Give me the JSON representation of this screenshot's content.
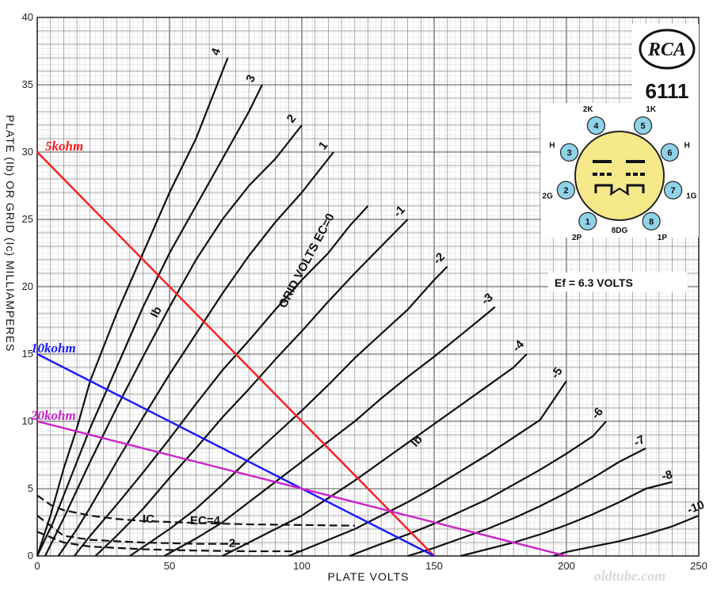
{
  "chart_data": {
    "type": "line",
    "xlabel": "PLATE VOLTS",
    "ylabel": "PLATE (Ib) OR GRID (Ic) MILLIAMPERES",
    "xlim": [
      0,
      250
    ],
    "ylim": [
      0,
      40
    ],
    "x_ticks": [
      "0",
      "50",
      "100",
      "150",
      "200",
      "250"
    ],
    "y_ticks": [
      "0",
      "5",
      "10",
      "15",
      "20",
      "25",
      "30",
      "35",
      "40"
    ],
    "grid": true,
    "heater_note": "Ef = 6.3 VOLTS",
    "tube_type": "6111",
    "brand": "RCA",
    "grid_volts_label": "GRID VOLTS EC=0",
    "ib_label": "Ib",
    "ic_label": "IC",
    "ec_label": "EC=4",
    "watermark": "oldtube.com",
    "plate_curves": [
      {
        "label": "4",
        "x": [
          0,
          5,
          10,
          15,
          20,
          30,
          40,
          50,
          60,
          65,
          72
        ],
        "y": [
          0,
          3,
          6.5,
          9.5,
          13,
          18,
          22.5,
          27,
          31,
          33.5,
          37
        ]
      },
      {
        "label": "3",
        "x": [
          0,
          6,
          10,
          20,
          30,
          40,
          50,
          60,
          70,
          80,
          85
        ],
        "y": [
          0,
          2.5,
          4.5,
          9.5,
          14,
          18.5,
          22.5,
          26,
          29.5,
          33,
          35
        ]
      },
      {
        "label": "2",
        "x": [
          3,
          10,
          20,
          30,
          40,
          50,
          60,
          70,
          80,
          90,
          100
        ],
        "y": [
          0,
          2.8,
          7,
          11,
          14.8,
          18.5,
          22,
          25,
          27.5,
          29.5,
          32
        ]
      },
      {
        "label": "1",
        "x": [
          8,
          15,
          20,
          30,
          40,
          50,
          60,
          70,
          80,
          90,
          100,
          112
        ],
        "y": [
          0,
          2,
          3.6,
          7,
          10.3,
          13.5,
          16.5,
          19.5,
          22.3,
          24.8,
          27,
          30
        ]
      },
      {
        "label": "0",
        "x": [
          14,
          20,
          30,
          40,
          50,
          60,
          70,
          80,
          90,
          100,
          110,
          118,
          125
        ],
        "y": [
          0,
          1.5,
          3.8,
          6.2,
          8.7,
          11.3,
          13.8,
          16,
          18.3,
          20.5,
          22.5,
          24.5,
          26
        ]
      },
      {
        "label": "-1",
        "x": [
          22,
          30,
          40,
          50,
          60,
          70,
          80,
          90,
          100,
          110,
          120,
          130,
          140
        ],
        "y": [
          0,
          1.5,
          3.5,
          5.8,
          8,
          10.3,
          12.4,
          14.6,
          16.7,
          18.9,
          21,
          23,
          25
        ]
      },
      {
        "label": "-2",
        "x": [
          35,
          50,
          60,
          70,
          80,
          90,
          100,
          110,
          120,
          130,
          140,
          150,
          155
        ],
        "y": [
          0,
          2,
          3.5,
          5.3,
          7.2,
          9,
          10.8,
          12.7,
          14.7,
          16.5,
          18.3,
          20.5,
          21.5
        ]
      },
      {
        "label": "-3",
        "x": [
          48,
          60,
          70,
          80,
          90,
          100,
          110,
          120,
          130,
          140,
          150,
          160,
          170,
          173
        ],
        "y": [
          0,
          1.3,
          2.5,
          4,
          5.5,
          7,
          8.5,
          10,
          11.7,
          13.3,
          14.8,
          16.4,
          18,
          18.5
        ]
      },
      {
        "label": "-4",
        "x": [
          70,
          80,
          90,
          100,
          110,
          120,
          130,
          140,
          150,
          160,
          170,
          180,
          185
        ],
        "y": [
          0,
          1,
          2,
          3,
          4.3,
          5.6,
          7,
          8.4,
          9.8,
          11.2,
          12.6,
          14,
          15
        ]
      },
      {
        "label": "-5",
        "x": [
          95,
          100,
          110,
          120,
          130,
          140,
          150,
          160,
          170,
          180,
          190,
          200
        ],
        "y": [
          0,
          0.4,
          1.2,
          2,
          3,
          4,
          5.1,
          6.3,
          7.5,
          8.8,
          10.1,
          13
        ]
      },
      {
        "label": "-6",
        "x": [
          118,
          130,
          140,
          150,
          160,
          170,
          180,
          190,
          200,
          210,
          215
        ],
        "y": [
          0,
          0.9,
          1.6,
          2.4,
          3.3,
          4.2,
          5.3,
          6.4,
          7.6,
          8.9,
          10
        ]
      },
      {
        "label": "-7",
        "x": [
          140,
          150,
          160,
          170,
          180,
          190,
          200,
          210,
          220,
          230
        ],
        "y": [
          0,
          0.6,
          1.3,
          2,
          2.8,
          3.7,
          4.7,
          5.8,
          7,
          8
        ]
      },
      {
        "label": "-8",
        "x": [
          160,
          170,
          180,
          190,
          200,
          210,
          220,
          230,
          240
        ],
        "y": [
          0,
          0.5,
          1,
          1.6,
          2.3,
          3.1,
          4,
          5,
          5.5
        ]
      },
      {
        "label": "-10",
        "x": [
          195,
          200,
          210,
          220,
          230,
          240,
          250
        ],
        "y": [
          0,
          0.3,
          0.7,
          1.1,
          1.6,
          2.2,
          3
        ]
      }
    ],
    "grid_current_curves": [
      {
        "label": "4",
        "x": [
          0,
          5,
          10,
          20,
          30,
          40,
          60,
          80,
          100,
          120
        ],
        "y": [
          4.5,
          3.8,
          3.4,
          3,
          2.75,
          2.6,
          2.45,
          2.35,
          2.3,
          2.25
        ]
      },
      {
        "label": "3",
        "x": [
          0,
          10,
          20,
          40,
          60,
          80
        ],
        "y": [
          3,
          1.5,
          1.2,
          1,
          0.9,
          0.9
        ]
      },
      {
        "label": "2",
        "x": [
          0,
          10,
          20,
          40,
          60,
          80,
          100
        ],
        "y": [
          1.8,
          1,
          0.7,
          0.5,
          0.4,
          0.35,
          0.35
        ]
      }
    ],
    "load_lines": [
      {
        "name": "5kohm",
        "color": "#ff1a1a",
        "x": [
          0,
          150
        ],
        "y": [
          30,
          0
        ]
      },
      {
        "name": "10kohm",
        "color": "#1a1aff",
        "x": [
          0,
          150
        ],
        "y": [
          15,
          0
        ]
      },
      {
        "name": "20kohm",
        "color": "#cc22cc",
        "x": [
          0,
          200
        ],
        "y": [
          10,
          0
        ]
      }
    ],
    "base_diagram": {
      "pins": [
        {
          "num": "1",
          "name": "2P"
        },
        {
          "num": "2",
          "name": "2G"
        },
        {
          "num": "3",
          "name": "H"
        },
        {
          "num": "4",
          "name": "2K"
        },
        {
          "num": "5",
          "name": "1K"
        },
        {
          "num": "6",
          "name": "H"
        },
        {
          "num": "7",
          "name": "1G"
        },
        {
          "num": "8",
          "name": "1P"
        }
      ],
      "bottom_label": "8DG",
      "pin_color": "#8fd3e8",
      "base_color": "#f5e98a"
    }
  }
}
